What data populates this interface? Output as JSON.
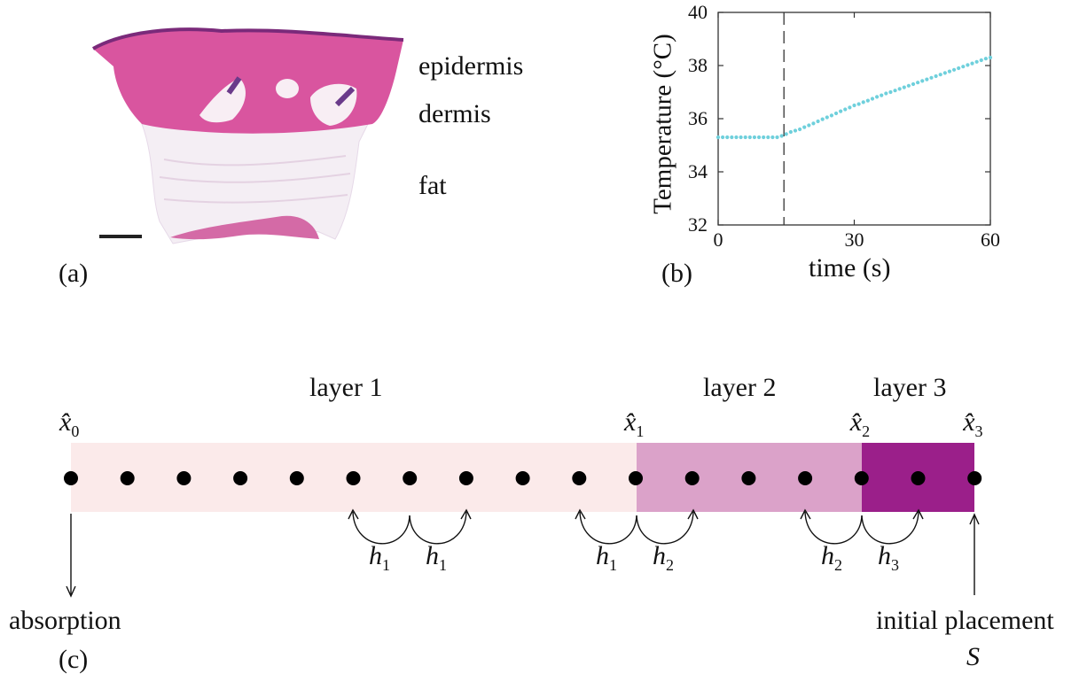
{
  "panel_a": {
    "panel_label": "(a)",
    "layer_labels": [
      "epidermis",
      "dermis",
      "fat"
    ]
  },
  "panel_b": {
    "panel_label": "(b)",
    "chart_data": {
      "type": "scatter",
      "xlabel": "time (s)",
      "ylabel": "Temperature (°C)",
      "xlim": [
        0,
        60
      ],
      "ylim": [
        32,
        40
      ],
      "xticks": [
        0,
        30,
        60
      ],
      "yticks": [
        32,
        34,
        36,
        38,
        40
      ],
      "grid": false,
      "onset_marker_x": 14.5,
      "point_color": "#6fd0dc",
      "series": [
        {
          "x": [
            0,
            1,
            2,
            3,
            4,
            5,
            6,
            7,
            8,
            9,
            10,
            11,
            12,
            13,
            14,
            15,
            16,
            17,
            18,
            19,
            20,
            21,
            22,
            23,
            24,
            25,
            26,
            27,
            28,
            29,
            30,
            31,
            32,
            33,
            34,
            35,
            36,
            37,
            38,
            39,
            40,
            41,
            42,
            43,
            44,
            45,
            46,
            47,
            48,
            49,
            50,
            51,
            52,
            53,
            54,
            55,
            56,
            57,
            58,
            59,
            60
          ],
          "y": [
            35.3,
            35.3,
            35.3,
            35.3,
            35.3,
            35.3,
            35.3,
            35.3,
            35.3,
            35.3,
            35.3,
            35.3,
            35.3,
            35.3,
            35.35,
            35.42,
            35.5,
            35.55,
            35.6,
            35.68,
            35.75,
            35.82,
            35.9,
            35.98,
            36.05,
            36.12,
            36.2,
            36.28,
            36.35,
            36.42,
            36.5,
            36.55,
            36.62,
            36.68,
            36.75,
            36.82,
            36.88,
            36.95,
            37.0,
            37.06,
            37.12,
            37.18,
            37.24,
            37.3,
            37.36,
            37.42,
            37.48,
            37.54,
            37.6,
            37.66,
            37.72,
            37.78,
            37.84,
            37.9,
            37.96,
            38.02,
            38.08,
            38.14,
            38.2,
            38.26,
            38.3
          ]
        }
      ]
    }
  },
  "panel_c": {
    "panel_label": "(c)",
    "layers": [
      {
        "label": "layer 1",
        "color": "#fbeaea"
      },
      {
        "label": "layer 2",
        "color": "#dba2c9"
      },
      {
        "label": "layer 3",
        "color": "#9b1f8a"
      }
    ],
    "boundary_symbol": "x̂",
    "boundaries": [
      {
        "sub": "0"
      },
      {
        "sub": "1"
      },
      {
        "sub": "2"
      },
      {
        "sub": "3"
      }
    ],
    "node_count": 17,
    "spacing_symbol": "h",
    "spacing_annotations": [
      {
        "sub": "1"
      },
      {
        "sub": "1"
      },
      {
        "sub": "1"
      },
      {
        "sub": "2"
      },
      {
        "sub": "2"
      },
      {
        "sub": "3"
      }
    ],
    "left_arrow_label": "absorption",
    "right_arrow_label": "initial placement",
    "right_arrow_symbol": "S"
  }
}
